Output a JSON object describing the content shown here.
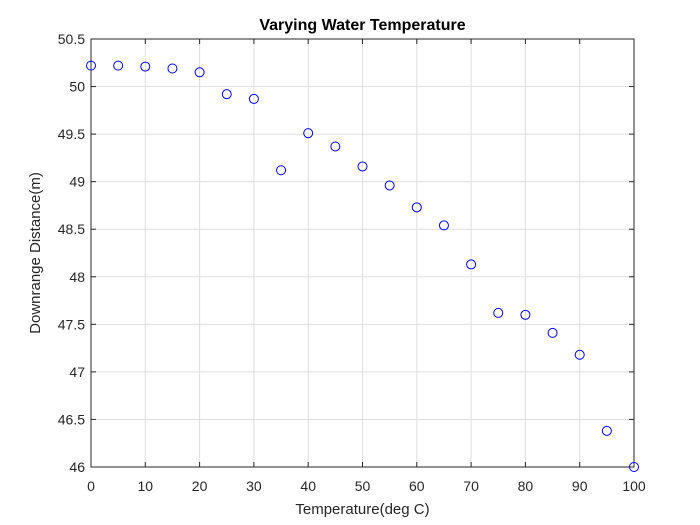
{
  "chart_data": {
    "type": "scatter",
    "title": "Varying Water Temperature",
    "xlabel": "Temperature(deg C)",
    "ylabel": "Downrange Distance(m)",
    "xlim": [
      0,
      100
    ],
    "ylim": [
      46,
      50.5
    ],
    "xticks": [
      0,
      10,
      20,
      30,
      40,
      50,
      60,
      70,
      80,
      90,
      100
    ],
    "yticks": [
      46,
      46.5,
      47,
      47.5,
      48,
      48.5,
      49,
      49.5,
      50,
      50.5
    ],
    "grid": true,
    "marker": "open-circle",
    "marker_color": "#0000ff",
    "series": [
      {
        "x": [
          0,
          5,
          10,
          15,
          20,
          25,
          30,
          35,
          40,
          45,
          50,
          55,
          60,
          65,
          70,
          75,
          80,
          85,
          90,
          95,
          100
        ],
        "y": [
          50.22,
          50.22,
          50.21,
          50.19,
          50.15,
          49.92,
          49.87,
          49.12,
          49.51,
          49.37,
          49.16,
          48.96,
          48.73,
          48.54,
          48.13,
          47.62,
          47.6,
          47.41,
          47.18,
          46.38,
          46.0
        ]
      }
    ]
  }
}
